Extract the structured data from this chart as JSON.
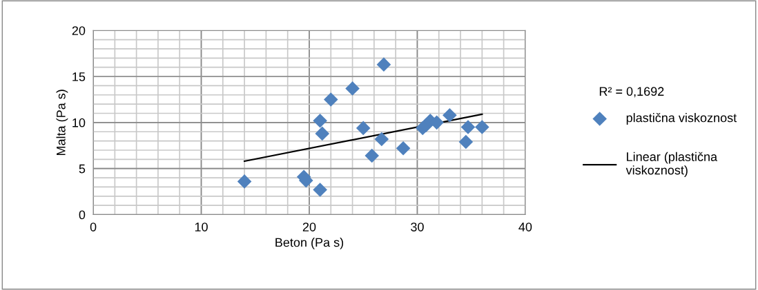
{
  "chart_data": {
    "type": "scatter",
    "xlabel": "Beton (Pa s)",
    "ylabel": "Malta (Pa s)",
    "xlim": [
      0,
      40
    ],
    "xticks": [
      0,
      10,
      20,
      30,
      40
    ],
    "ylim": [
      0,
      20
    ],
    "yticks": [
      0,
      5,
      10,
      15,
      20
    ],
    "grid": true,
    "legend": "right",
    "annotations": [
      "R² = 0,1692"
    ],
    "series": [
      {
        "name": "plastična viskoznost",
        "marker": "diamond",
        "color": "#4f81bd",
        "x": [
          14,
          19.5,
          19.7,
          21,
          21,
          21.2,
          22,
          24,
          25,
          25.8,
          26.7,
          26.9,
          28.7,
          30.5,
          30.8,
          31.2,
          31.8,
          33,
          34.5,
          34.7,
          36
        ],
        "values": [
          3.6,
          4.1,
          3.7,
          2.7,
          10.2,
          8.8,
          12.5,
          13.7,
          9.4,
          6.4,
          8.2,
          16.3,
          7.2,
          9.4,
          9.7,
          10.2,
          10,
          10.8,
          7.9,
          9.5,
          9.5
        ]
      },
      {
        "name": "Linear (plastična viskoznost)",
        "type": "line",
        "color": "#000000",
        "x": [
          14,
          36
        ],
        "values": [
          5.8,
          10.9
        ]
      }
    ]
  }
}
